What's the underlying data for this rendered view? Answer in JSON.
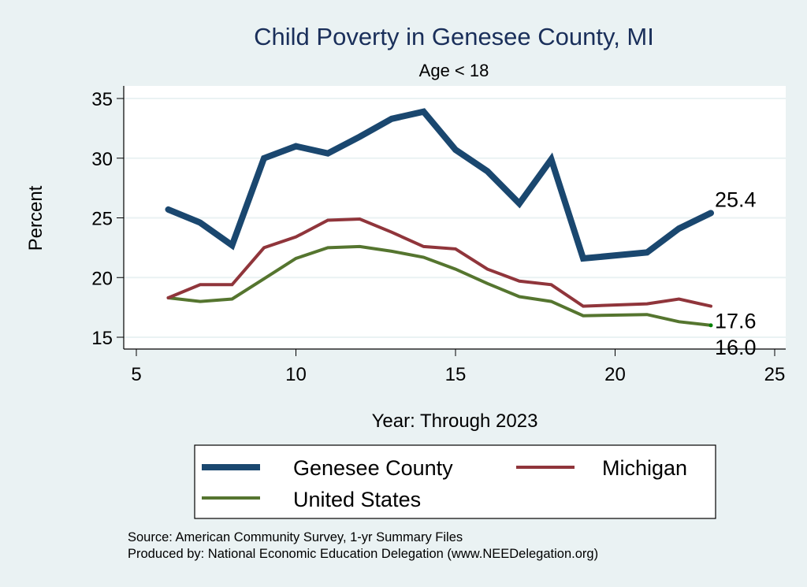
{
  "chart_data": {
    "type": "line",
    "title": "Child Poverty in Genesee County, MI",
    "subtitle": "Age < 18",
    "xlabel": "Year: Through 2023",
    "ylabel": "Percent",
    "xlim": [
      5,
      25
    ],
    "ylim": [
      15,
      35
    ],
    "xticks": [
      5,
      10,
      15,
      20,
      25
    ],
    "yticks": [
      15,
      20,
      25,
      30,
      35
    ],
    "grid": "horizontal",
    "legend_position": "bottom",
    "x": [
      6,
      7,
      8,
      9,
      10,
      11,
      12,
      13,
      14,
      15,
      16,
      17,
      18,
      19,
      21,
      22,
      23
    ],
    "series": [
      {
        "name": "Genesee County",
        "color": "#1a476f",
        "values": [
          25.7,
          24.6,
          22.7,
          30.0,
          31.0,
          30.4,
          31.8,
          33.3,
          33.9,
          30.7,
          28.9,
          26.2,
          29.9,
          21.6,
          22.1,
          24.1,
          25.4
        ],
        "end_label": "25.4"
      },
      {
        "name": "Michigan",
        "color": "#90353b",
        "values": [
          18.3,
          19.4,
          19.4,
          22.5,
          23.4,
          24.8,
          24.9,
          23.8,
          22.6,
          22.4,
          20.7,
          19.7,
          19.4,
          17.6,
          17.8,
          18.2,
          17.6
        ],
        "end_label": "17.6"
      },
      {
        "name": "United States",
        "color": "#55752f",
        "values": [
          18.3,
          18.0,
          18.2,
          19.9,
          21.6,
          22.5,
          22.6,
          22.2,
          21.7,
          20.7,
          19.5,
          18.4,
          18.0,
          16.8,
          16.9,
          16.3,
          16.0
        ],
        "end_label": "16.0",
        "end_marker_color": "#008000"
      }
    ],
    "notes": [
      "Source: American Community Survey, 1-yr Summary Files",
      "Produced by: National Economic Education Delegation (www.NEEDelegation.org)"
    ]
  },
  "colors": {
    "background": "#eaf2f3",
    "plot_background": "#ffffff",
    "gridline": "#eaf2f3",
    "title": "#1a2f5a"
  }
}
